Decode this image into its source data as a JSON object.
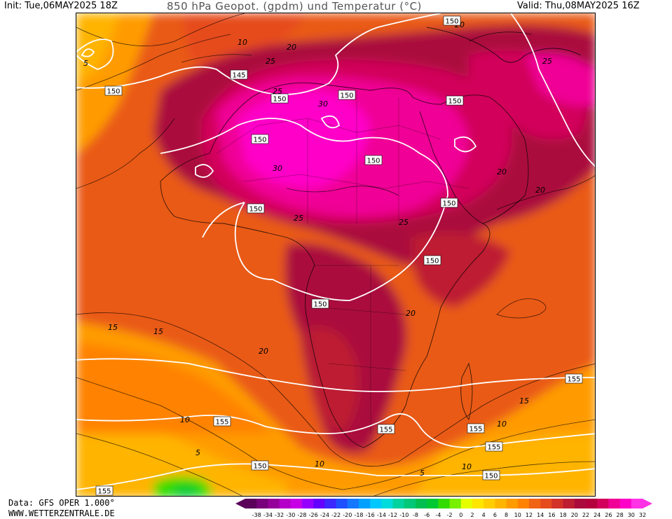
{
  "header": {
    "init": "Init: Tue,06MAY2025 18Z",
    "title": "850 hPa Geopot. (gpdm) und Temperatur (°C)",
    "valid": "Valid: Thu,08MAY2025 16Z"
  },
  "footer": {
    "data_source": "Data: GFS OPER 1.000°",
    "website": "WWW.WETTERZENTRALE.DE"
  },
  "isotherm_labels": [
    "5",
    "10",
    "15",
    "20",
    "25",
    "30"
  ],
  "map_labels": [
    {
      "text": "5"
    },
    {
      "text": "10"
    },
    {
      "text": "20"
    },
    {
      "text": "25"
    },
    {
      "text": "25"
    },
    {
      "text": "30"
    },
    {
      "text": "30"
    },
    {
      "text": "25"
    },
    {
      "text": "25"
    },
    {
      "text": "20"
    },
    {
      "text": "20"
    },
    {
      "text": "25"
    },
    {
      "text": "20"
    },
    {
      "text": "20"
    },
    {
      "text": "15"
    },
    {
      "text": "15"
    },
    {
      "text": "20"
    },
    {
      "text": "15"
    },
    {
      "text": "10"
    },
    {
      "text": "10"
    },
    {
      "text": "5"
    },
    {
      "text": "10"
    },
    {
      "text": "10"
    },
    {
      "text": "5"
    }
  ],
  "geopotential_labels": [
    {
      "text": "150"
    },
    {
      "text": "145"
    },
    {
      "text": "150"
    },
    {
      "text": "150"
    },
    {
      "text": "150"
    },
    {
      "text": "150"
    },
    {
      "text": "150"
    },
    {
      "text": "150"
    },
    {
      "text": "150"
    },
    {
      "text": "150"
    },
    {
      "text": "150"
    },
    {
      "text": "150"
    },
    {
      "text": "155"
    },
    {
      "text": "155"
    },
    {
      "text": "155"
    },
    {
      "text": "155"
    },
    {
      "text": "155"
    },
    {
      "text": "150"
    },
    {
      "text": "150"
    },
    {
      "text": "155"
    }
  ],
  "color_scale": {
    "ticks": [
      "-38",
      "-34",
      "-32",
      "-30",
      "-28",
      "-26",
      "-24",
      "-22",
      "-20",
      "-18",
      "-16",
      "-14",
      "-12",
      "-10",
      "-8",
      "-6",
      "-4",
      "-2",
      "0",
      "2",
      "4",
      "6",
      "8",
      "10",
      "12",
      "14",
      "16",
      "18",
      "20",
      "22",
      "24",
      "26",
      "28",
      "30",
      "32"
    ],
    "colors": [
      "#5a005a",
      "#78007a",
      "#96009a",
      "#b400c8",
      "#c800e6",
      "#9600ff",
      "#6400ff",
      "#3c28ff",
      "#1e50ff",
      "#1478ff",
      "#00a0ff",
      "#00c8ff",
      "#00dcdc",
      "#00d2a0",
      "#00c878",
      "#00be50",
      "#00c832",
      "#32dc00",
      "#78f000",
      "#e6ff00",
      "#ffe600",
      "#ffcd00",
      "#ffb400",
      "#ff9b00",
      "#ff8200",
      "#f06414",
      "#e64b1e",
      "#d23228",
      "#be1e32",
      "#aa0a3c",
      "#b4003c",
      "#d2005a",
      "#f00096",
      "#ff00c8",
      "#ff32e6"
    ]
  }
}
